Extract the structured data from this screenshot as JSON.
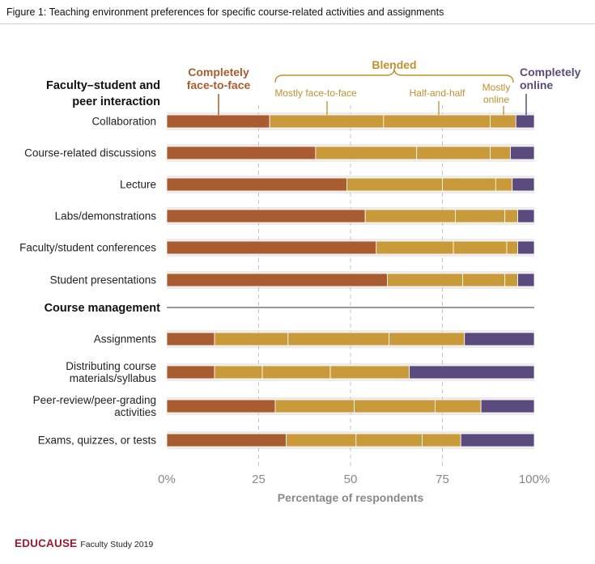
{
  "figure_title": "Figure 1: Teaching environment preferences for specific course-related activities and assignments",
  "footer": {
    "brand": "EDUCAUSE",
    "note": "Faculty Study 2019"
  },
  "colors": {
    "completely_face_to_face": "#a95c2f",
    "mostly_face_to_face": "#c99a3a",
    "half_and_half": "#c99a3a",
    "mostly_online": "#c99a3a",
    "completely_online": "#5b4a7e",
    "face_label": "#a95c2f",
    "blended_label": "#c0902d",
    "online_label": "#5b4a7e",
    "row_band": "#ebebeb",
    "axis_text": "#888888"
  },
  "chart_data": {
    "type": "bar",
    "orientation": "horizontal",
    "stacked": true,
    "xlabel": "Percentage of respondents",
    "xlim": [
      0,
      100
    ],
    "xticks": [
      0,
      25,
      50,
      75,
      100
    ],
    "xtick_labels": [
      "0%",
      "25",
      "50",
      "75",
      "100%"
    ],
    "legend": {
      "blended_group_label": "Blended",
      "completely_face_to_face": "Completely face-to-face",
      "mostly_face_to_face": "Mostly face-to-face",
      "half_and_half": "Half-and-half",
      "mostly_online": "Mostly online",
      "completely_online": "Completely online"
    },
    "groups": [
      {
        "name": "Faculty-student and peer interaction",
        "rows": [
          {
            "label": "Collaboration",
            "values": [
              28,
              31,
              29,
              7,
              5
            ]
          },
          {
            "label": "Course-related discussions",
            "values": [
              40.5,
              27.5,
              20,
              5.5,
              6.5
            ]
          },
          {
            "label": "Lecture",
            "values": [
              49,
              26,
              14.5,
              4.5,
              6
            ]
          },
          {
            "label": "Labs/demonstrations",
            "values": [
              54,
              24.5,
              13.5,
              3.5,
              4.5
            ]
          },
          {
            "label": "Faculty/student conferences",
            "values": [
              57,
              21,
              14.5,
              3,
              4.5
            ]
          },
          {
            "label": "Student presentations",
            "values": [
              60,
              20.5,
              11.5,
              3.5,
              4.5
            ]
          }
        ]
      },
      {
        "name": "Course management",
        "rows": [
          {
            "label": "Assignments",
            "values": [
              13,
              20,
              27.5,
              20.5,
              19
            ]
          },
          {
            "label": "Distributing course materials/syllabus",
            "values": [
              13,
              13,
              18.5,
              21.5,
              34
            ]
          },
          {
            "label": "Peer-review/peer-grading activities",
            "values": [
              29.5,
              21.5,
              22,
              12.5,
              14.5
            ]
          },
          {
            "label": "Exams, quizzes, or tests",
            "values": [
              32.5,
              19,
              18,
              10.5,
              20
            ]
          }
        ]
      }
    ]
  }
}
